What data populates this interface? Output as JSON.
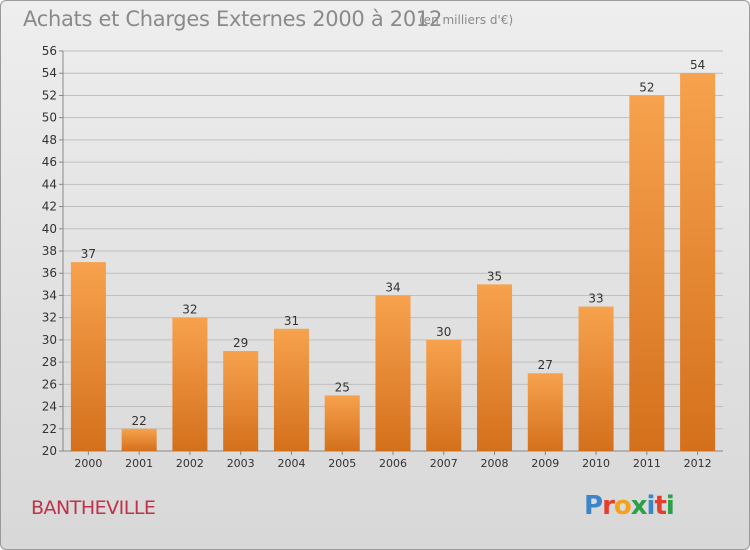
{
  "header": {
    "title": "Achats et Charges Externes 2000 à 2012",
    "subtitle": "(en milliers d'€)"
  },
  "footer": {
    "commune": "BANTHEVILLE",
    "logo_text": "Proxiti"
  },
  "colors": {
    "bar_top": "#f7a24e",
    "bar_bottom": "#d4701c",
    "grid": "#bfbfbf",
    "commune": "#c0314b"
  },
  "chart_data": {
    "type": "bar",
    "categories": [
      "2000",
      "2001",
      "2002",
      "2003",
      "2004",
      "2005",
      "2006",
      "2007",
      "2008",
      "2009",
      "2010",
      "2011",
      "2012"
    ],
    "values": [
      37,
      22,
      32,
      29,
      31,
      25,
      34,
      30,
      35,
      27,
      33,
      52,
      54
    ],
    "title": "Achats et Charges Externes 2000 à 2012",
    "subtitle": "(en milliers d'€)",
    "xlabel": "",
    "ylabel": "",
    "ylim": [
      20,
      56
    ],
    "yticks": [
      20,
      22,
      24,
      26,
      28,
      30,
      32,
      34,
      36,
      38,
      40,
      42,
      44,
      46,
      48,
      50,
      52,
      54,
      56
    ],
    "grid": true,
    "data_labels": true,
    "legend": "none"
  }
}
